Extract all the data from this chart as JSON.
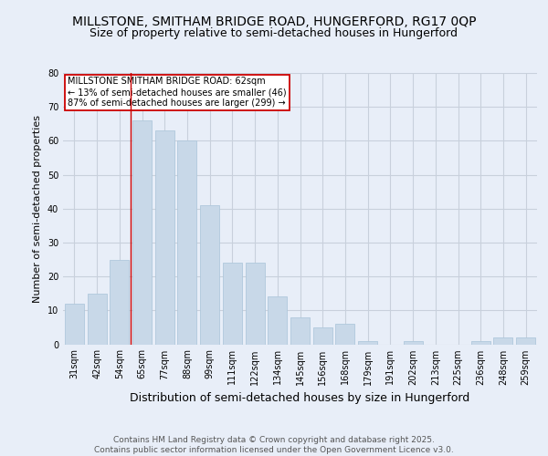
{
  "title1": "MILLSTONE, SMITHAM BRIDGE ROAD, HUNGERFORD, RG17 0QP",
  "title2": "Size of property relative to semi-detached houses in Hungerford",
  "xlabel": "Distribution of semi-detached houses by size in Hungerford",
  "ylabel": "Number of semi-detached properties",
  "categories": [
    "31sqm",
    "42sqm",
    "54sqm",
    "65sqm",
    "77sqm",
    "88sqm",
    "99sqm",
    "111sqm",
    "122sqm",
    "134sqm",
    "145sqm",
    "156sqm",
    "168sqm",
    "179sqm",
    "191sqm",
    "202sqm",
    "213sqm",
    "225sqm",
    "236sqm",
    "248sqm",
    "259sqm"
  ],
  "values": [
    12,
    15,
    25,
    66,
    63,
    60,
    41,
    24,
    24,
    14,
    8,
    5,
    6,
    1,
    0,
    1,
    0,
    0,
    1,
    2,
    2
  ],
  "bar_color": "#c8d8e8",
  "bar_edge_color": "#b0c8dc",
  "vline_color": "#cc0000",
  "vline_x_index": 3,
  "annotation_text": "MILLSTONE SMITHAM BRIDGE ROAD: 62sqm\n← 13% of semi-detached houses are smaller (46)\n87% of semi-detached houses are larger (299) →",
  "annotation_box_color": "#ffffff",
  "annotation_box_edge": "#cc0000",
  "ylim": [
    0,
    80
  ],
  "yticks": [
    0,
    10,
    20,
    30,
    40,
    50,
    60,
    70,
    80
  ],
  "footer": "Contains HM Land Registry data © Crown copyright and database right 2025.\nContains public sector information licensed under the Open Government Licence v3.0.",
  "bg_color": "#e8eef8",
  "plot_bg_color": "#e8eef8",
  "grid_color": "#c8d0dc",
  "title_fontsize": 10,
  "subtitle_fontsize": 9,
  "tick_fontsize": 7,
  "xlabel_fontsize": 9,
  "ylabel_fontsize": 8,
  "footer_fontsize": 6.5,
  "annot_fontsize": 7
}
